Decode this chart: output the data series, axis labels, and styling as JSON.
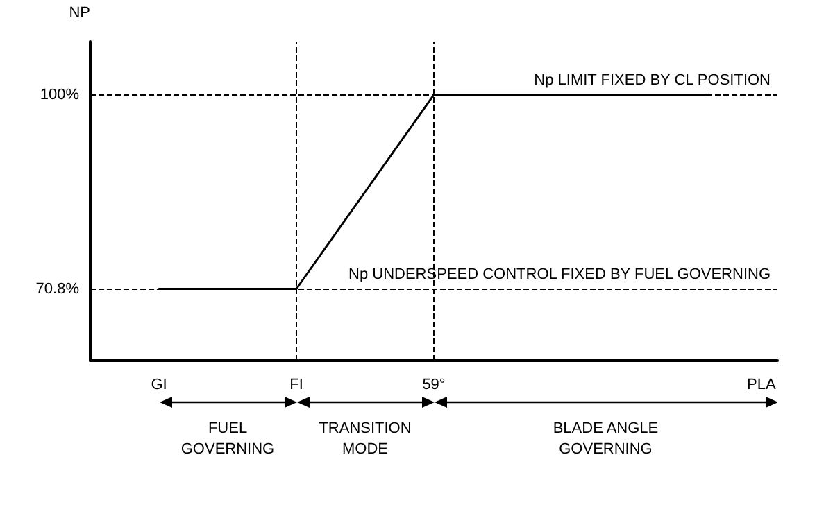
{
  "chart_data": {
    "type": "line",
    "xlabel": "PLA",
    "ylabel": "NP",
    "categories": [
      "GI",
      "FI",
      "59°",
      null,
      null
    ],
    "series": [
      {
        "color": "#000000",
        "values": [
          70.8,
          70.8,
          100,
          100,
          100
        ]
      }
    ],
    "ylim": [
      60,
      108
    ],
    "yticks": [
      {
        "value": 70.8,
        "label": "70.8%"
      },
      {
        "value": 100,
        "label": "100%"
      }
    ],
    "ref_lines": [
      {
        "axis": "y",
        "value": 100,
        "label": "Np LIMIT FIXED BY CL POSITION",
        "line_style": "dashed"
      },
      {
        "axis": "y",
        "value": 70.8,
        "label": "Np UNDERSPEED CONTROL FIXED BY FUEL GOVERNING",
        "line_style": "dashed"
      },
      {
        "axis": "x",
        "value": "FI",
        "label": null,
        "line_style": "dashed"
      },
      {
        "axis": "x",
        "value": "59°",
        "label": null,
        "line_style": "dashed"
      }
    ],
    "annotations": [
      "FUEL GOVERNING",
      "TRANSITION MODE",
      "BLADE ANGLE GOVERNING"
    ],
    "marker": "none",
    "line_style": "solid",
    "grid": false
  }
}
